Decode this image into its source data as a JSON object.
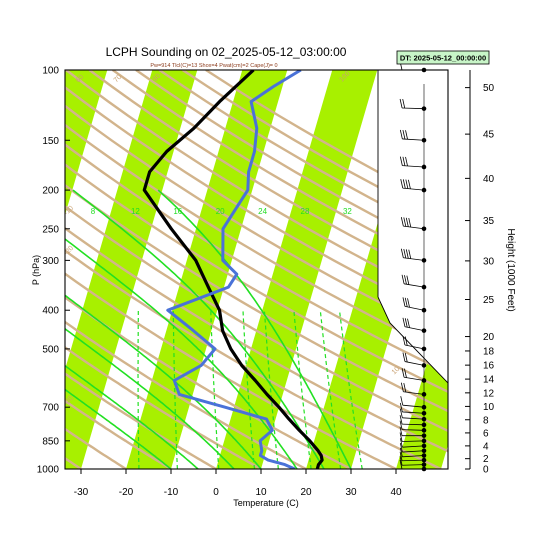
{
  "chart_data": {
    "type": "line",
    "title": "LCPH Sounding on 02_2025-05-12_03:00:00",
    "subtitle": "Pw=914 Tlcl(C)=13 Shox=4 Pwat(cm)=2 Cape(J)= 0",
    "dt_label": "DT: 2025-05-12_00:00:00",
    "xlabel": "Temperature (C)",
    "ylabel": "P (hPa)",
    "y2label": "Height (1000 Feet)",
    "x_ticks": [
      "-30",
      "-20",
      "-10",
      "0",
      "10",
      "20",
      "30",
      "40"
    ],
    "x_tick_values": [
      -30,
      -20,
      -10,
      0,
      10,
      20,
      30,
      40
    ],
    "p_ticks": [
      "100",
      "150",
      "200",
      "250",
      "300",
      "400",
      "500",
      "700",
      "850",
      "1000"
    ],
    "p_tick_values": [
      100,
      150,
      200,
      250,
      300,
      400,
      500,
      700,
      850,
      1000
    ],
    "height_ticks": [
      "0",
      "2",
      "4",
      "6",
      "8",
      "10",
      "12",
      "14",
      "16",
      "18",
      "20",
      "25",
      "30",
      "35",
      "40",
      "45",
      "50"
    ],
    "height_tick_values": [
      0,
      2,
      4,
      6,
      8,
      10,
      12,
      14,
      16,
      18,
      20,
      25,
      30,
      35,
      40,
      45,
      50
    ],
    "mixing_ratio_labels": [
      "8",
      "12",
      "16",
      "20",
      "24",
      "28",
      "32"
    ],
    "mixing_ratio_values": [
      8,
      12,
      16,
      20,
      24,
      28,
      32
    ],
    "dry_adiabat_labels": [
      "60",
      "70",
      "80",
      "100",
      "60",
      "50",
      "40",
      "30",
      "20",
      "10",
      "0",
      "-10",
      "-20",
      "-30"
    ],
    "moist_adiabat_labels": [
      "30",
      "20",
      "10",
      "0",
      "-10",
      "-20",
      "-30"
    ],
    "xlim": [
      -33,
      49
    ],
    "plim": [
      100,
      1000
    ],
    "series": [
      {
        "name": "temperature",
        "color": "#000000",
        "p": [
          1000,
          975,
          950,
          925,
          900,
          850,
          800,
          750,
          700,
          650,
          600,
          550,
          500,
          450,
          400,
          350,
          300,
          250,
          200,
          180,
          160,
          140,
          120,
          100
        ],
        "t": [
          22.5,
          22.5,
          23,
          22.5,
          21.5,
          19,
          16,
          13,
          10,
          6.5,
          3,
          -1,
          -4.5,
          -7.5,
          -9.5,
          -13.5,
          -18,
          -25.5,
          -34,
          -34,
          -31.5,
          -27,
          -23,
          -17.5
        ]
      },
      {
        "name": "dewpoint",
        "color": "#4a72d8",
        "p": [
          1000,
          975,
          950,
          925,
          900,
          850,
          800,
          750,
          700,
          650,
          600,
          550,
          500,
          450,
          400,
          350,
          325,
          300,
          250,
          200,
          180,
          160,
          140,
          120,
          110,
          100
        ],
        "t": [
          17.5,
          15,
          11,
          9,
          9,
          8,
          10,
          8,
          -2,
          -13,
          -15,
          -10,
          -8,
          -14,
          -21,
          -9,
          -8,
          -12,
          -14,
          -11,
          -12,
          -12,
          -13,
          -16,
          -12,
          -7
        ]
      }
    ],
    "wind_barbs": {
      "p": [
        1000,
        975,
        950,
        925,
        900,
        875,
        850,
        825,
        800,
        775,
        750,
        725,
        700,
        650,
        600,
        550,
        500,
        450,
        400,
        350,
        300,
        250,
        200,
        175,
        150,
        125,
        100
      ],
      "speed_kt": [
        10,
        10,
        10,
        10,
        10,
        10,
        10,
        10,
        10,
        10,
        10,
        10,
        10,
        15,
        15,
        15,
        15,
        25,
        25,
        30,
        35,
        35,
        35,
        30,
        30,
        15,
        10
      ],
      "direction_deg": [
        270,
        265,
        265,
        260,
        260,
        260,
        265,
        270,
        275,
        275,
        280,
        280,
        285,
        290,
        295,
        300,
        300,
        300,
        300,
        295,
        290,
        290,
        285,
        280,
        280,
        275,
        270
      ]
    },
    "grid": true,
    "legend": "none"
  }
}
